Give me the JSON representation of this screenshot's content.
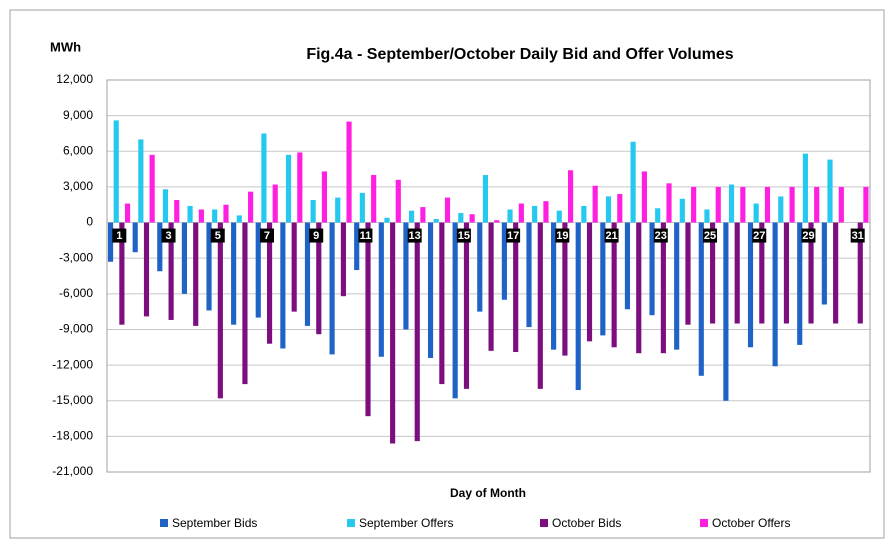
{
  "chart_data": {
    "type": "bar",
    "title": "Fig.4a - September/October Daily Bid and Offer Volumes",
    "y_label": "MWh",
    "x_label": "Day of Month",
    "categories": [
      "1",
      null,
      "3",
      null,
      "5",
      null,
      "7",
      null,
      "9",
      null,
      "11",
      null,
      "13",
      null,
      "15",
      null,
      "17",
      null,
      "19",
      null,
      "21",
      null,
      "23",
      null,
      "25",
      null,
      "27",
      null,
      "29",
      null,
      "31"
    ],
    "series": [
      {
        "name": "September Bids",
        "color": "#1f63c6",
        "values": [
          -3300,
          -2500,
          -4100,
          -6000,
          -7400,
          -8600,
          -8000,
          -10600,
          -8700,
          -11100,
          -4000,
          -11300,
          -9000,
          -11400,
          -14800,
          -7500,
          -6500,
          -8800,
          -10700,
          -14100,
          -9500,
          -7300,
          -7800,
          -10700,
          -12900,
          -15000,
          -10500,
          -12100,
          -10300,
          -6900,
          null
        ]
      },
      {
        "name": "September Offers",
        "color": "#25c8ee",
        "values": [
          8600,
          7000,
          2800,
          1400,
          1100,
          600,
          7500,
          5700,
          1900,
          2100,
          2500,
          400,
          1000,
          300,
          800,
          4000,
          1100,
          1400,
          1000,
          1400,
          2200,
          6800,
          1200,
          2000,
          1100,
          3200,
          1600,
          2200,
          5800,
          5300,
          null
        ]
      },
      {
        "name": "October Bids",
        "color": "#7d0e7f",
        "values": [
          -8600,
          -7900,
          -8200,
          -8700,
          -14800,
          -13600,
          -10200,
          -7500,
          -9400,
          -6200,
          -16300,
          -18600,
          -18400,
          -13600,
          -14000,
          -10800,
          -10900,
          -14000,
          -11200,
          -10000,
          -10500,
          -11000,
          -11000,
          -8600,
          -8500,
          -8500,
          -8500,
          -8500,
          -8500,
          -8500,
          -8500
        ]
      },
      {
        "name": "October Offers",
        "color": "#ff1fe0",
        "values": [
          1600,
          5700,
          1900,
          1100,
          1500,
          2600,
          3200,
          5900,
          4300,
          8500,
          4000,
          3600,
          1300,
          2100,
          700,
          200,
          1600,
          1800,
          4400,
          3100,
          2400,
          4300,
          3300,
          3000,
          3000,
          3000,
          3000,
          3000,
          3000,
          3000,
          3000
        ]
      }
    ],
    "ylim": [
      -21000,
      12000
    ],
    "yticks": [
      {
        "value": -21000,
        "label": "-21,000"
      },
      {
        "value": -18000,
        "label": "-18,000"
      },
      {
        "value": -15000,
        "label": "-15,000"
      },
      {
        "value": -12000,
        "label": "-12,000"
      },
      {
        "value": -9000,
        "label": "-9,000"
      },
      {
        "value": -6000,
        "label": "-6,000"
      },
      {
        "value": -3000,
        "label": "-3,000"
      },
      0,
      {
        "value": 3000,
        "label": "3,000"
      },
      {
        "value": 6000,
        "label": "6,000"
      },
      {
        "value": 9000,
        "label": "9,000"
      },
      {
        "value": 12000,
        "label": "12,000"
      }
    ],
    "grid": true,
    "legend": "bottom"
  }
}
